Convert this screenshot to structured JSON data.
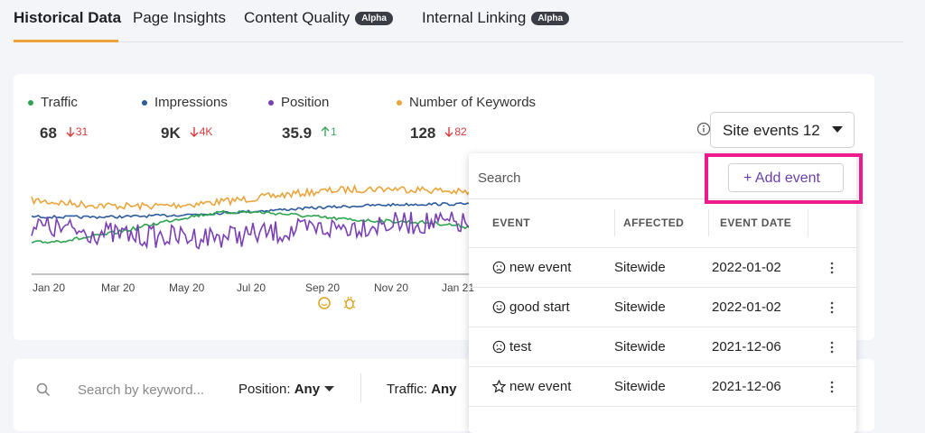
{
  "tabs": [
    {
      "label": "Historical Data",
      "active": true
    },
    {
      "label": "Page Insights"
    },
    {
      "label": "Content Quality",
      "badge": "Alpha"
    },
    {
      "label": "Internal Linking",
      "badge": "Alpha"
    }
  ],
  "metrics": [
    {
      "name": "Traffic",
      "value": "68",
      "change": "31",
      "direction": "down",
      "color": "#2ea44f"
    },
    {
      "name": "Impressions",
      "value": "9K",
      "change": "4K",
      "direction": "down",
      "color": "#2d5b9e"
    },
    {
      "name": "Position",
      "value": "35.9",
      "change": "1",
      "direction": "up",
      "color": "#7b3fb5"
    },
    {
      "name": "Number of Keywords",
      "value": "128",
      "change": "82",
      "direction": "down",
      "color": "#e9a43b"
    }
  ],
  "x_axis_labels": [
    "Jan 20",
    "Mar 20",
    "May 20",
    "Jul 20",
    "Sep 20",
    "Nov 20",
    "Jan 21"
  ],
  "site_events": {
    "label": "Site events",
    "count": "12"
  },
  "events_panel": {
    "search_placeholder": "Search",
    "add_button": "+ Add event",
    "columns": [
      "EVENT",
      "AFFECTED",
      "EVENT DATE"
    ],
    "rows": [
      {
        "icon": "sad",
        "event": "new event",
        "affected": "Sitewide",
        "date": "2022-01-02"
      },
      {
        "icon": "smile",
        "event": "good start",
        "affected": "Sitewide",
        "date": "2022-01-02"
      },
      {
        "icon": "sad",
        "event": "test",
        "affected": "Sitewide",
        "date": "2021-12-06"
      },
      {
        "icon": "star",
        "event": "new event",
        "affected": "Sitewide",
        "date": "2021-12-06"
      }
    ]
  },
  "filters": {
    "search_placeholder": "Search by keyword...",
    "position": {
      "label": "Position:",
      "value": "Any"
    },
    "traffic": {
      "label": "Traffic:",
      "value": "Any"
    }
  }
}
